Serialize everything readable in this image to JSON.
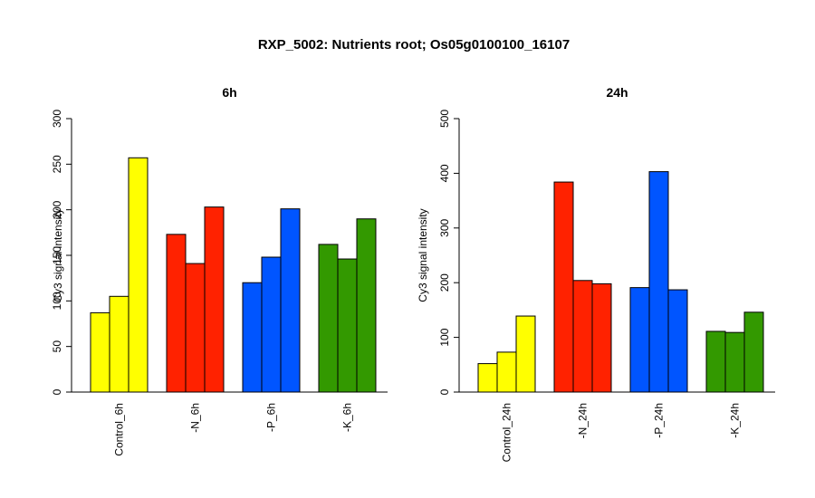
{
  "title": "RXP_5002: Nutrients root; Os05g0100100_16107",
  "colors": {
    "control": "#ffff00",
    "n": "#ff2200",
    "p": "#0055ff",
    "k": "#339900"
  },
  "chart_data": [
    {
      "type": "bar",
      "title": "6h",
      "ylabel": "Cy3 signal intensity",
      "ylim": [
        0,
        300
      ],
      "yticks": [
        0,
        50,
        100,
        150,
        200,
        250,
        300
      ],
      "groups": [
        {
          "label": "Control_6h",
          "color": "#ffff00",
          "values": [
            87,
            105,
            257
          ]
        },
        {
          "label": "-N_6h",
          "color": "#ff2200",
          "values": [
            173,
            141,
            203
          ]
        },
        {
          "label": "-P_6h",
          "color": "#0055ff",
          "values": [
            120,
            148,
            201
          ]
        },
        {
          "label": "-K_6h",
          "color": "#339900",
          "values": [
            162,
            146,
            190
          ]
        }
      ]
    },
    {
      "type": "bar",
      "title": "24h",
      "ylabel": "Cy3 signal intensity",
      "ylim": [
        0,
        500
      ],
      "yticks": [
        0,
        100,
        200,
        300,
        400,
        500
      ],
      "groups": [
        {
          "label": "Control_24h",
          "color": "#ffff00",
          "values": [
            52,
            73,
            139
          ]
        },
        {
          "label": "-N_24h",
          "color": "#ff2200",
          "values": [
            384,
            204,
            198
          ]
        },
        {
          "label": "-P_24h",
          "color": "#0055ff",
          "values": [
            191,
            403,
            187
          ]
        },
        {
          "label": "-K_24h",
          "color": "#339900",
          "values": [
            111,
            109,
            146
          ]
        }
      ]
    }
  ]
}
